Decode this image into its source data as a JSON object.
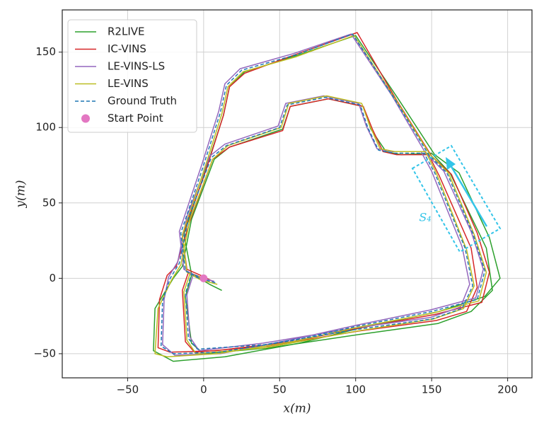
{
  "chart_data": {
    "type": "line",
    "x_label": "x(m)",
    "y_label": "y(m)",
    "xlim": [
      -93,
      216
    ],
    "ylim": [
      -66,
      178
    ],
    "xticks": [
      {
        "value": -50,
        "label": "−50"
      },
      0,
      50,
      100,
      150,
      200
    ],
    "yticks": [
      {
        "value": -50,
        "label": "−50"
      },
      0,
      50,
      100,
      150
    ],
    "grid": true,
    "legend": "upper left",
    "annotation": "S₄",
    "series": [
      {
        "name": "R2LIVE",
        "color": "#2ca02c",
        "style": "solid",
        "x": [
          0,
          -8,
          -12,
          -8,
          0,
          44,
          104,
          154,
          176,
          190,
          186,
          162,
          150,
          130,
          120,
          110,
          105,
          82,
          57,
          52,
          17,
          7,
          -8,
          -14,
          -20,
          -32,
          -33,
          -20,
          14,
          63,
          103,
          155,
          185,
          195,
          188,
          168,
          152,
          128,
          100,
          62,
          27,
          17,
          13,
          2,
          -13,
          -8,
          4,
          12
        ],
        "y": [
          0,
          2,
          -12,
          -43,
          -50,
          -46,
          -37,
          -30,
          -22,
          -8,
          20,
          70,
          83,
          82,
          84,
          99,
          114,
          119,
          114,
          99,
          87,
          79,
          39,
          8,
          0,
          -20,
          -48,
          -55,
          -52,
          -43,
          -33,
          -22,
          -12,
          0,
          27,
          70,
          82,
          119,
          161,
          148,
          137,
          127,
          108,
          74,
          29,
          3,
          -4,
          -8
        ]
      },
      {
        "name": "IC-VINS",
        "color": "#d62728",
        "style": "solid",
        "x": [
          0,
          -10,
          -14,
          -12,
          -6,
          42,
          102,
          153,
          173,
          180,
          176,
          155,
          148,
          127,
          118,
          111,
          105,
          82,
          57,
          52,
          17,
          6,
          -9,
          -18,
          -24,
          -29,
          -30,
          -22,
          8,
          58,
          102,
          152,
          183,
          188,
          180,
          163,
          150,
          127,
          101,
          62,
          27,
          17,
          13,
          2,
          -14,
          -11,
          -2,
          6
        ],
        "y": [
          0,
          4,
          -8,
          -42,
          -49,
          -45,
          -35,
          -28,
          -22,
          -6,
          20,
          68,
          82,
          82,
          84,
          99,
          114,
          119,
          114,
          98,
          87,
          79,
          38,
          8,
          2,
          -14,
          -46,
          -49,
          -48,
          -42,
          -33,
          -24,
          -16,
          4,
          30,
          69,
          81,
          118,
          163,
          149,
          136,
          127,
          108,
          73,
          28,
          6,
          2,
          -2
        ]
      },
      {
        "name": "LE-VINS-LS",
        "color": "#9467bd",
        "style": "solid",
        "x": [
          0,
          -7,
          -11,
          -9,
          -3,
          39,
          99,
          149,
          169,
          175,
          170,
          150,
          143,
          124,
          114,
          107,
          102,
          79,
          54,
          49,
          14,
          4,
          -11,
          -17,
          -23,
          -26,
          -27,
          -19,
          11,
          61,
          101,
          149,
          179,
          184,
          176,
          158,
          146,
          124,
          97,
          59,
          24,
          14,
          10,
          -1,
          -16,
          -13,
          -4,
          7
        ],
        "y": [
          0,
          2,
          -11,
          -39,
          -48,
          -43,
          -33,
          -26,
          -19,
          -4,
          21,
          71,
          84,
          84,
          86,
          101,
          116,
          121,
          116,
          101,
          89,
          81,
          41,
          11,
          1,
          -14,
          -44,
          -51,
          -50,
          -40,
          -31,
          -21,
          -13,
          6,
          31,
          71,
          83,
          121,
          162,
          149,
          139,
          129,
          111,
          76,
          31,
          6,
          1,
          -2
        ]
      },
      {
        "name": "LE-VINS",
        "color": "#bcbd22",
        "style": "solid",
        "x": [
          0,
          -9,
          -13,
          -11,
          -5,
          41,
          101,
          151,
          171,
          178,
          173,
          153,
          146,
          126,
          116,
          109,
          104,
          81,
          56,
          51,
          16,
          6,
          -9,
          -15,
          -21,
          -30,
          -32,
          -24,
          9,
          59,
          99,
          151,
          181,
          186,
          178,
          161,
          149,
          126,
          99,
          61,
          26,
          16,
          12,
          1,
          -14,
          -11,
          -2,
          9
        ],
        "y": [
          0,
          3,
          -9,
          -41,
          -50,
          -46,
          -35,
          -27,
          -20,
          -5,
          19,
          70,
          84,
          84,
          86,
          102,
          116,
          121,
          116,
          100,
          88,
          79,
          39,
          9,
          -1,
          -20,
          -50,
          -52,
          -50,
          -42,
          -33,
          -23,
          -15,
          4,
          29,
          70,
          82,
          119,
          161,
          147,
          137,
          127,
          109,
          74,
          29,
          4,
          -1,
          -4
        ]
      },
      {
        "name": "Ground Truth",
        "color": "#1f77b4",
        "style": "dashed",
        "x": [
          0,
          -8,
          -12,
          -10,
          -4,
          40,
          100,
          150,
          170,
          177,
          172,
          152,
          145,
          125,
          115,
          108,
          103,
          80,
          55,
          50,
          15,
          5,
          -10,
          -16,
          -22,
          -27,
          -28,
          -20,
          10,
          60,
          100,
          150,
          180,
          185,
          177,
          160,
          148,
          125,
          98,
          60,
          25,
          15,
          11,
          0,
          -15,
          -12,
          -3,
          8
        ],
        "y": [
          0,
          3,
          -10,
          -40,
          -47,
          -44,
          -34,
          -27,
          -20,
          -5,
          20,
          70,
          83,
          83,
          85,
          100,
          115,
          120,
          115,
          100,
          88,
          80,
          40,
          10,
          0,
          -15,
          -45,
          -50,
          -49,
          -41,
          -32,
          -22,
          -14,
          5,
          30,
          70,
          82,
          120,
          162,
          148,
          138,
          128,
          110,
          75,
          30,
          5,
          0,
          -3
        ]
      },
      {
        "name": "Start Point",
        "color": "#e377c2",
        "style": "marker",
        "x": [
          0
        ],
        "y": [
          0
        ]
      }
    ]
  }
}
